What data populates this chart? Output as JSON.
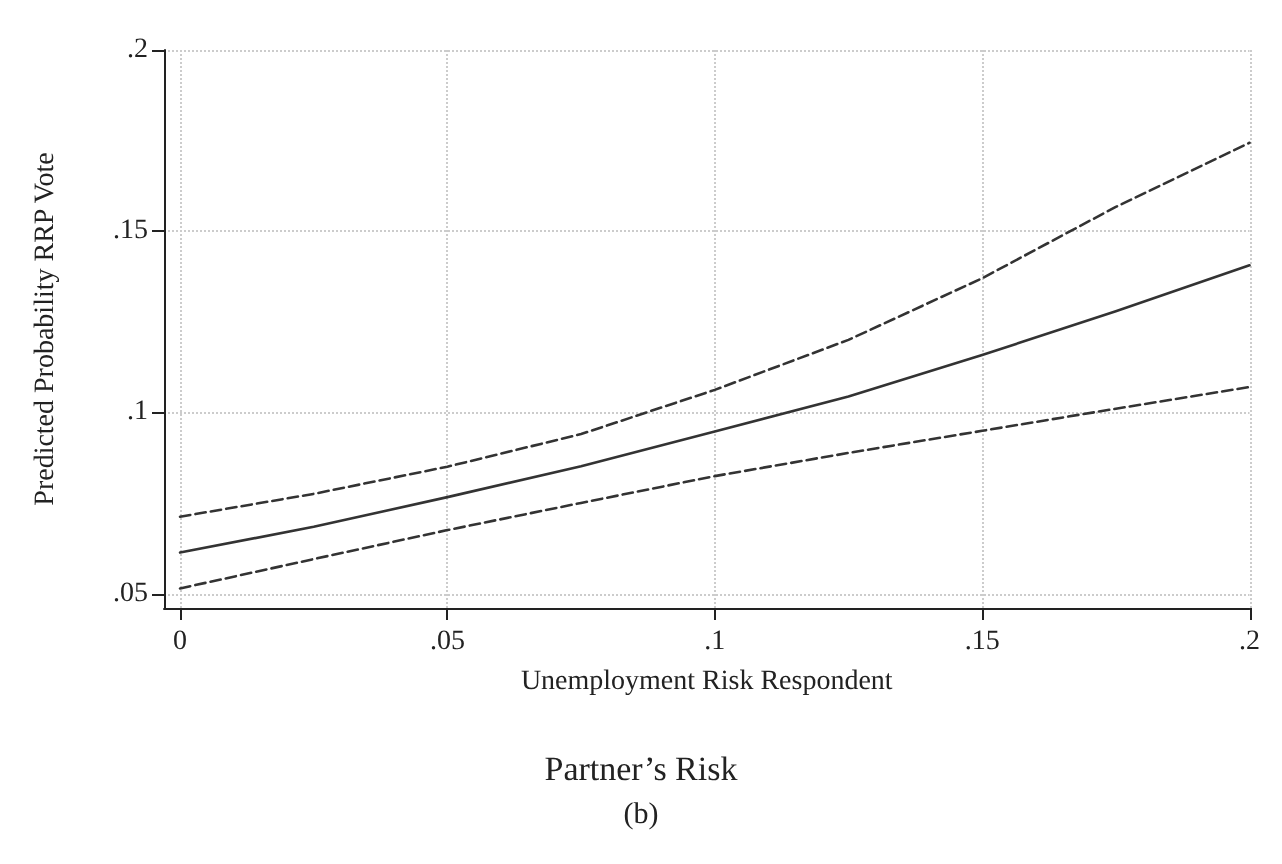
{
  "chart_data": {
    "type": "line",
    "title": "Partner’s Risk",
    "subtitle": "(b)",
    "xlabel": "Unemployment Risk Respondent",
    "ylabel": "Predicted Probability RRP Vote",
    "x": [
      0,
      0.025,
      0.05,
      0.075,
      0.1,
      0.125,
      0.15,
      0.175,
      0.2
    ],
    "series": [
      {
        "color": "#333333",
        "line_style": "dashed",
        "values": [
          0.0712,
          0.0775,
          0.085,
          0.094,
          0.1062,
          0.12,
          0.137,
          0.1567,
          0.1744
        ]
      },
      {
        "color": "#333333",
        "line_style": "solid",
        "values": [
          0.0613,
          0.0684,
          0.0766,
          0.0851,
          0.0947,
          0.1044,
          0.1158,
          0.1279,
          0.1406
        ]
      },
      {
        "color": "#333333",
        "line_style": "dashed",
        "values": [
          0.0514,
          0.0595,
          0.0675,
          0.075,
          0.0824,
          0.0888,
          0.0949,
          0.101,
          0.107
        ]
      }
    ],
    "xlim": [
      -0.003,
      0.2
    ],
    "ylim": [
      0.046,
      0.2
    ],
    "xticks": [
      0,
      {
        "value": 0.05,
        "label": ".05"
      },
      {
        "value": 0.1,
        "label": ".1"
      },
      {
        "value": 0.15,
        "label": ".15"
      },
      {
        "value": 0.2,
        "label": ".2"
      }
    ],
    "yticks": [
      {
        "value": 0.05,
        "label": ".05"
      },
      {
        "value": 0.1,
        "label": ".1"
      },
      {
        "value": 0.15,
        "label": ".15"
      },
      {
        "value": 0.2,
        "label": ".2"
      }
    ],
    "grid": true,
    "marker": "none"
  }
}
